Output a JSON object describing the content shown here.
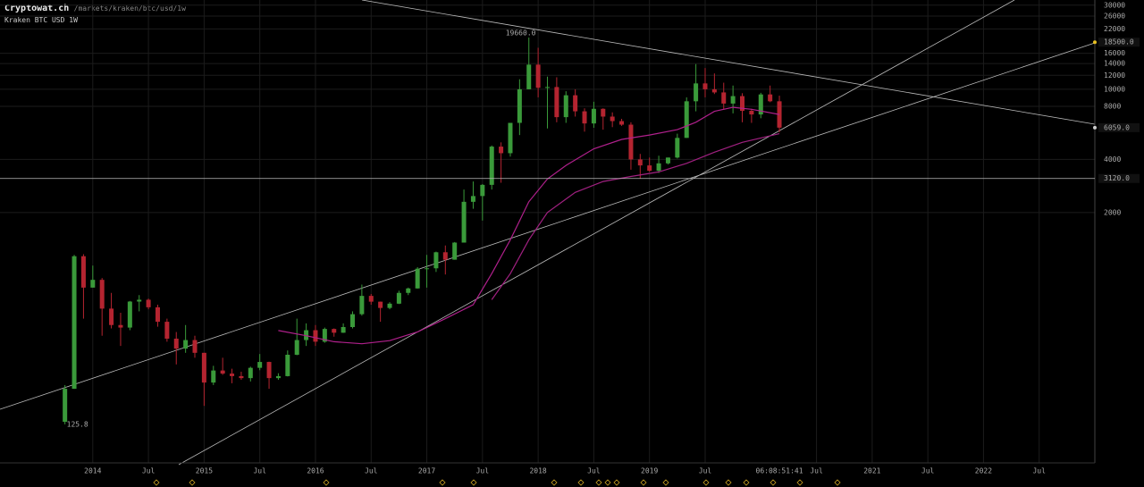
{
  "header": {
    "site": "Cryptowat.ch",
    "path": "/markets/kraken/btc/usd/1w",
    "market": "Kraken BTC USD 1W"
  },
  "chart_data": {
    "type": "candlestick",
    "log_scale": true,
    "grid": true,
    "up_color": "#3a9a3a",
    "down_color": "#b42430",
    "x": [
      "2013-10",
      "2013-11",
      "2013-12",
      "2014-01",
      "2014-02",
      "2014-03",
      "2014-04",
      "2014-05",
      "2014-06",
      "2014-07",
      "2014-08",
      "2014-09",
      "2014-10",
      "2014-11",
      "2014-12",
      "2015-01",
      "2015-02",
      "2015-03",
      "2015-04",
      "2015-05",
      "2015-06",
      "2015-07",
      "2015-08",
      "2015-09",
      "2015-10",
      "2015-11",
      "2015-12",
      "2016-01",
      "2016-02",
      "2016-03",
      "2016-04",
      "2016-05",
      "2016-06",
      "2016-07",
      "2016-08",
      "2016-09",
      "2016-10",
      "2016-11",
      "2016-12",
      "2017-01",
      "2017-02",
      "2017-03",
      "2017-04",
      "2017-05",
      "2017-06",
      "2017-07",
      "2017-08",
      "2017-09",
      "2017-10",
      "2017-11",
      "2017-12",
      "2018-01",
      "2018-02",
      "2018-03",
      "2018-04",
      "2018-05",
      "2018-06",
      "2018-07",
      "2018-08",
      "2018-09",
      "2018-10",
      "2018-11",
      "2018-12",
      "2019-01",
      "2019-02",
      "2019-03",
      "2019-04",
      "2019-05",
      "2019-06",
      "2019-07",
      "2019-08",
      "2019-09",
      "2019-10",
      "2019-11",
      "2019-12",
      "2020-01",
      "2020-02",
      "2020-03"
    ],
    "open": [
      130,
      200,
      1130,
      750,
      830,
      570,
      460,
      445,
      625,
      640,
      580,
      480,
      385,
      338,
      378,
      320,
      217,
      254,
      244,
      236,
      230,
      263,
      284,
      230,
      236,
      312,
      378,
      430,
      370,
      437,
      416,
      448,
      530,
      673,
      624,
      575,
      608,
      700,
      742,
      960,
      965,
      1190,
      1080,
      1350,
      2300,
      2480,
      2870,
      4730,
      4340,
      6450,
      10000,
      13800,
      10200,
      10300,
      6950,
      9250,
      7500,
      6400,
      7750,
      7000,
      6600,
      6300,
      4000,
      3700,
      3450,
      3800,
      4100,
      5300,
      8550,
      10800,
      10000,
      9600,
      8300,
      9150,
      7550,
      7200,
      9350,
      8550
    ],
    "high": [
      210,
      1150,
      1160,
      1000,
      850,
      700,
      540,
      630,
      680,
      650,
      600,
      500,
      420,
      460,
      400,
      320,
      270,
      300,
      260,
      250,
      267,
      315,
      285,
      245,
      330,
      500,
      470,
      460,
      445,
      440,
      470,
      550,
      780,
      690,
      625,
      620,
      720,
      750,
      980,
      1150,
      1200,
      1300,
      1360,
      2700,
      3000,
      2900,
      4800,
      5000,
      6450,
      11400,
      19660,
      17200,
      11800,
      11700,
      9750,
      10000,
      7800,
      8500,
      7800,
      7400,
      6800,
      6500,
      4300,
      4100,
      4200,
      4100,
      5600,
      9000,
      13900,
      13200,
      12300,
      10900,
      10500,
      9500,
      7750,
      9550,
      10500,
      9200
    ],
    "low": [
      125.8,
      200,
      500,
      750,
      400,
      440,
      350,
      430,
      550,
      565,
      450,
      370,
      275,
      320,
      300,
      160,
      210,
      240,
      215,
      225,
      220,
      255,
      200,
      225,
      235,
      310,
      350,
      350,
      365,
      395,
      415,
      440,
      520,
      600,
      480,
      565,
      605,
      680,
      740,
      750,
      920,
      890,
      1080,
      1350,
      2100,
      1800,
      2700,
      2950,
      4150,
      5500,
      10000,
      9000,
      6000,
      6500,
      6450,
      7000,
      5750,
      6050,
      5900,
      6100,
      6200,
      3500,
      3120,
      3400,
      3350,
      3750,
      4050,
      5300,
      7500,
      9000,
      9400,
      7700,
      7300,
      6500,
      6450,
      6850,
      8450,
      5700
    ],
    "close": [
      200,
      1130,
      750,
      830,
      570,
      460,
      445,
      625,
      640,
      580,
      480,
      385,
      338,
      378,
      320,
      217,
      254,
      244,
      236,
      230,
      263,
      284,
      230,
      236,
      312,
      378,
      430,
      370,
      437,
      416,
      448,
      530,
      673,
      624,
      575,
      608,
      700,
      742,
      960,
      965,
      1190,
      1080,
      1350,
      2300,
      2480,
      2870,
      4730,
      4340,
      6450,
      10000,
      13800,
      10200,
      10300,
      6950,
      9250,
      7500,
      6400,
      7750,
      7000,
      6600,
      6300,
      4000,
      3700,
      3450,
      3800,
      4100,
      5300,
      8550,
      10800,
      10000,
      9600,
      8300,
      9150,
      7550,
      7200,
      9350,
      8550,
      6059
    ],
    "moving_averages": [
      {
        "color": "#b0208c",
        "x": [
          "2015-09",
          "2015-12",
          "2016-03",
          "2016-06",
          "2016-09",
          "2016-12",
          "2017-03",
          "2017-06",
          "2017-08",
          "2017-10",
          "2017-12",
          "2018-02",
          "2018-04",
          "2018-07",
          "2018-10",
          "2019-01",
          "2019-04",
          "2019-06",
          "2019-08",
          "2019-10",
          "2019-12",
          "2020-03"
        ],
        "values": [
          428,
          400,
          370,
          360,
          375,
          420,
          500,
          600,
          900,
          1400,
          2300,
          3100,
          3700,
          4600,
          5200,
          5500,
          5900,
          6500,
          7500,
          7900,
          7700,
          7200
        ]
      },
      {
        "color": "#a02080",
        "x": [
          "2017-08",
          "2017-10",
          "2017-12",
          "2018-02",
          "2018-05",
          "2018-08",
          "2018-11",
          "2019-02",
          "2019-05",
          "2019-08",
          "2019-11",
          "2020-03"
        ],
        "values": [
          640,
          900,
          1400,
          2000,
          2600,
          3000,
          3200,
          3400,
          3800,
          4400,
          5000,
          5600
        ]
      }
    ],
    "annotations": [
      {
        "x": "2017-12",
        "value": 19660,
        "label": "19660.0"
      },
      {
        "x": "2013-10",
        "value": 125.8,
        "label": "125.8"
      }
    ],
    "price_lines": [
      {
        "value": 18500,
        "label": "18500.0",
        "color": "#e8c020"
      },
      {
        "value": 6059,
        "label": "6059.0",
        "color": "#cccccc"
      },
      {
        "value": 3120,
        "label": "3120.0",
        "color": "#cccccc",
        "line": true
      }
    ],
    "countdown": "06:08:51:41",
    "ylim": [
      76,
      32100
    ],
    "yticks": [
      30000,
      26000,
      22000,
      16000,
      14000,
      12000,
      10000,
      8000,
      4000,
      2000
    ],
    "xlim": [
      "2013-03",
      "2023-01"
    ],
    "xticks": [
      {
        "value": "2014-01",
        "label": "2014"
      },
      {
        "value": "2014-07",
        "label": "Jul"
      },
      {
        "value": "2015-01",
        "label": "2015"
      },
      {
        "value": "2015-07",
        "label": "Jul"
      },
      {
        "value": "2016-01",
        "label": "2016"
      },
      {
        "value": "2016-07",
        "label": "Jul"
      },
      {
        "value": "2017-01",
        "label": "2017"
      },
      {
        "value": "2017-07",
        "label": "Jul"
      },
      {
        "value": "2018-01",
        "label": "2018"
      },
      {
        "value": "2018-07",
        "label": "Jul"
      },
      {
        "value": "2019-01",
        "label": "2019"
      },
      {
        "value": "2019-07",
        "label": "Jul"
      },
      {
        "value": "2020-07",
        "label": "Jul"
      },
      {
        "value": "2021-01",
        "label": "2021"
      },
      {
        "value": "2021-07",
        "label": "Jul"
      },
      {
        "value": "2022-01",
        "label": "2022"
      },
      {
        "value": "2022-07",
        "label": "Jul"
      }
    ]
  }
}
